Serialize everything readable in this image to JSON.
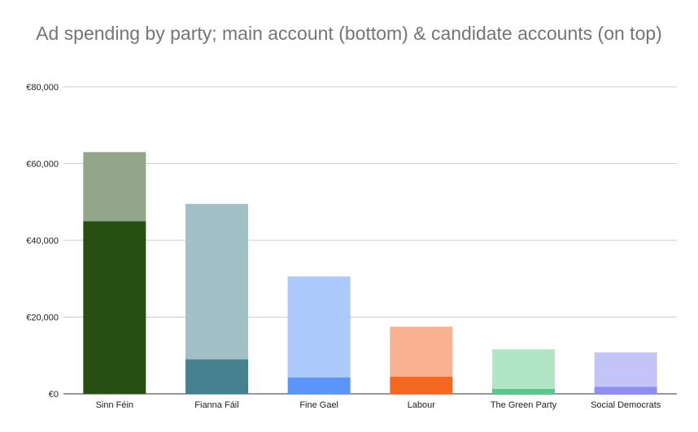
{
  "chart_data": {
    "type": "bar",
    "stacked": true,
    "title": "Ad spending by party; main account (bottom) & candidate accounts (on top)",
    "xlabel": "",
    "ylabel": "",
    "categories": [
      "Sinn Féin",
      "Fianna Fáil",
      "Fine Gael",
      "Labour",
      "The Green Party",
      "Social Democrats"
    ],
    "series": [
      {
        "role": "main account",
        "values": [
          45000,
          9000,
          4300,
          4500,
          1300,
          1800
        ],
        "colors": [
          "#274e13",
          "#45818e",
          "#5b95f9",
          "#f4691f",
          "#57cb8a",
          "#8e8ef0"
        ]
      },
      {
        "role": "candidate accounts",
        "values": [
          18000,
          40500,
          26300,
          13000,
          10300,
          9000
        ],
        "colors": [
          "#93a689",
          "#a2c0c6",
          "#acc9fc",
          "#f8b291",
          "#b0e6c6",
          "#c4c4f8"
        ]
      }
    ],
    "ylim": [
      0,
      80000
    ],
    "yticks": [
      "€0",
      "€20,000",
      "€40,000",
      "€60,000",
      "€80,000"
    ],
    "ytick_values": [
      0,
      20000,
      40000,
      60000,
      80000
    ],
    "grid": true,
    "legend": "none"
  }
}
